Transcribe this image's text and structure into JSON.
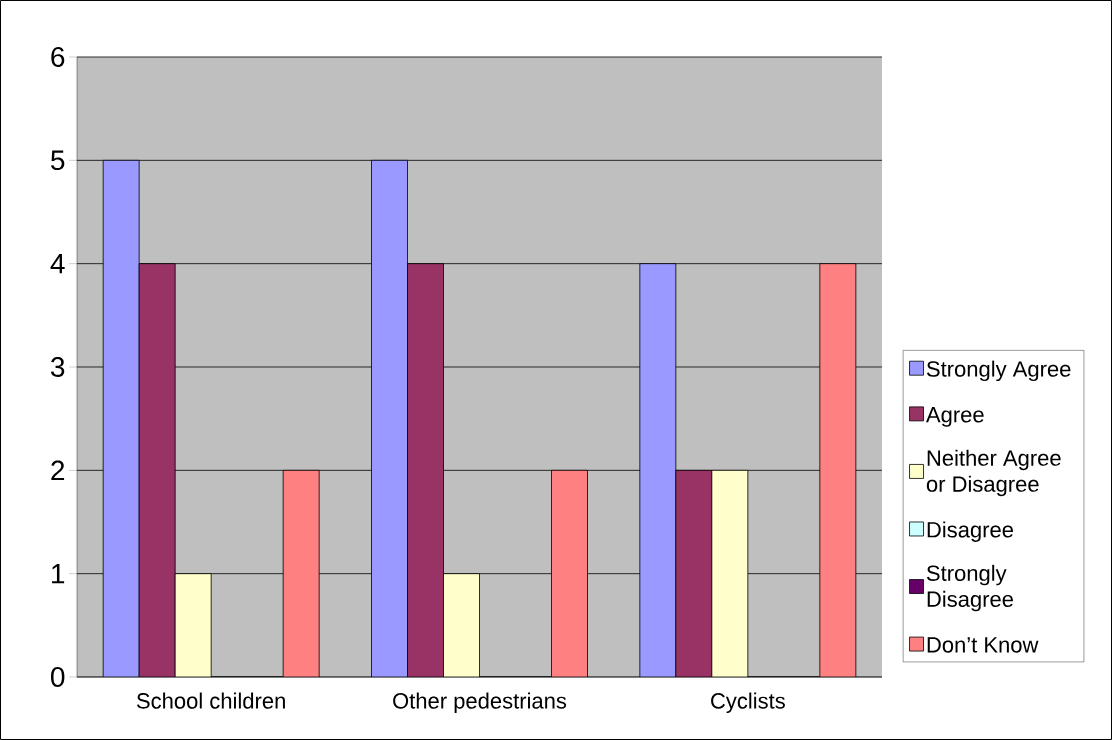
{
  "chart_data": {
    "type": "bar",
    "categories": [
      "School children",
      "Other pedestrians",
      "Cyclists"
    ],
    "series": [
      {
        "name": "Strongly Agree",
        "color": "#9999ff",
        "values": [
          5,
          5,
          4
        ]
      },
      {
        "name": "Agree",
        "color": "#993366",
        "values": [
          4,
          4,
          2
        ]
      },
      {
        "name": "Neither Agree or Disagree",
        "color": "#ffffcc",
        "values": [
          1,
          1,
          2
        ]
      },
      {
        "name": "Disagree",
        "color": "#ccffff",
        "values": [
          0,
          0,
          0
        ]
      },
      {
        "name": "Strongly Disagree",
        "color": "#660066",
        "values": [
          0,
          0,
          0
        ]
      },
      {
        "name": "Don’t Know",
        "color": "#ff8080",
        "values": [
          2,
          2,
          4
        ]
      }
    ],
    "ylim": [
      0,
      6
    ],
    "yticks": [
      0,
      1,
      2,
      3,
      4,
      5,
      6
    ],
    "grid": "y",
    "legend": "right"
  }
}
